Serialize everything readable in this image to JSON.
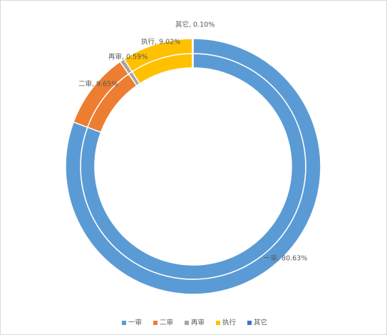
{
  "chart_data": {
    "type": "doughnut",
    "categories": [
      "一审",
      "二审",
      "再审",
      "执行",
      "其它"
    ],
    "colors": [
      "#5b9bd5",
      "#ed7d31",
      "#a5a5a5",
      "#ffc000",
      "#4472c4"
    ],
    "series": [
      {
        "values": [
          80.63,
          9.65,
          0.59,
          9.02,
          0.1
        ]
      },
      {
        "values": [
          80.63,
          9.65,
          0.59,
          9.02,
          0.1
        ],
        "value_labels": [
          "一审, 80.63%",
          "二审, 9.65%",
          "再审, 0.59%",
          "执行, 9.02%",
          "其它, 0.10%"
        ]
      }
    ],
    "legend": "bottom"
  }
}
